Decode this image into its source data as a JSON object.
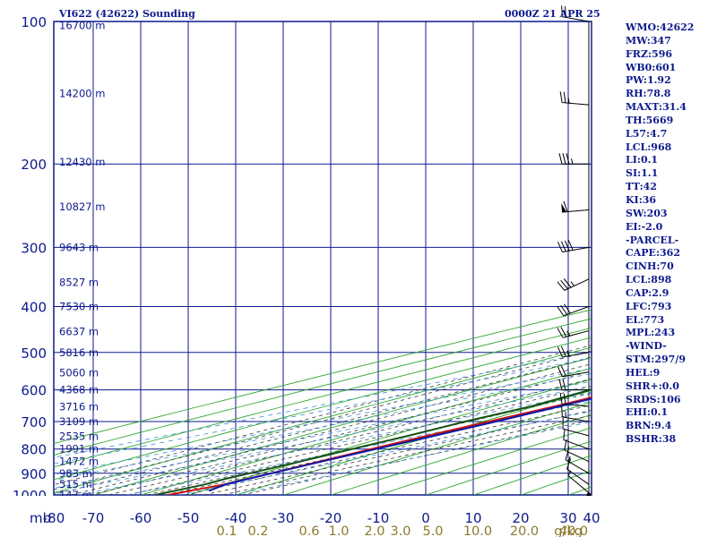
{
  "title": "VI622 (42622) Sounding",
  "datetime": "0000Z 21 APR 25",
  "colors": {
    "frame": "#0d1a8c",
    "temperature": "#cc1111",
    "dewpoint": "#145214",
    "parcel": "#1018a8",
    "dry_adiabat": "#2aa62a",
    "moist_adiabat": "#3a3a3a",
    "mixing_ratio": "#3a8fd8"
  },
  "indices": [
    "WMO:42622",
    "MW:347",
    "FRZ:596",
    "WB0:601",
    "PW:1.92",
    "RH:78.8",
    "MAXT:31.4",
    "TH:5669",
    "L57:4.7",
    "LCL:968",
    "LI:0.1",
    "SI:1.1",
    "TT:42",
    "KI:36",
    "SW:203",
    "EI:-2.0",
    "-PARCEL-",
    "CAPE:362",
    "CINH:70",
    "LCL:898",
    "CAP:2.9",
    "LFC:793",
    "EL:773",
    "MPL:243",
    "-WIND-",
    "STM:297/9",
    "HEL:9",
    "SHR+:0.0",
    "SRDS:106",
    "EHI:0.1",
    "BRN:9.4",
    "BSHR:38"
  ],
  "chart_data": {
    "type": "line",
    "title": "VI622 (42622) Sounding",
    "xlabel": "",
    "ylabel": "mb",
    "x_range": [
      -80,
      0
    ],
    "y_range_mb": [
      1000,
      100
    ],
    "y_scale": "log",
    "grid": true,
    "x_ticks": [
      "-80",
      "-70",
      "-60",
      "-50",
      "-40",
      "-30",
      "-20",
      "-10",
      "0",
      "10",
      "20",
      "30",
      "40"
    ],
    "y_ticks": [
      {
        "p": 100,
        "label": "100"
      },
      {
        "p": 200,
        "label": "200"
      },
      {
        "p": 300,
        "label": "300"
      },
      {
        "p": 400,
        "label": "400"
      },
      {
        "p": 500,
        "label": "500"
      },
      {
        "p": 600,
        "label": "600"
      },
      {
        "p": 700,
        "label": "700"
      },
      {
        "p": 800,
        "label": "800"
      },
      {
        "p": 900,
        "label": "900"
      },
      {
        "p": 1000,
        "label": "1000"
      }
    ],
    "height_labels": [
      {
        "p": 102,
        "label": "16700 m"
      },
      {
        "p": 142,
        "label": "14200 m"
      },
      {
        "p": 198,
        "label": "12430 m"
      },
      {
        "p": 246,
        "label": "10827 m"
      },
      {
        "p": 300,
        "label": "9643 m"
      },
      {
        "p": 356,
        "label": "8527 m"
      },
      {
        "p": 400,
        "label": "7530 m"
      },
      {
        "p": 452,
        "label": "6637 m"
      },
      {
        "p": 500,
        "label": "5816 m"
      },
      {
        "p": 552,
        "label": "5060 m"
      },
      {
        "p": 600,
        "label": "4368 m"
      },
      {
        "p": 652,
        "label": "3716 m"
      },
      {
        "p": 700,
        "label": "3109 m"
      },
      {
        "p": 752,
        "label": "2535 m"
      },
      {
        "p": 800,
        "label": "1991 m"
      },
      {
        "p": 850,
        "label": "1472 m"
      },
      {
        "p": 900,
        "label": "983 m"
      },
      {
        "p": 950,
        "label": "515 m"
      },
      {
        "p": 1000,
        "label": "147 m"
      }
    ],
    "mixing_ratio_labels": [
      "0.1",
      "0.2",
      "0.6",
      "1.0",
      "2.0",
      "3.0",
      "5.0",
      "10.0",
      "20.0",
      "40.0"
    ],
    "mixing_ratio_unit": "g/kg",
    "series": [
      {
        "name": "Temperature",
        "color": "#cc1111",
        "points": [
          [
            1000,
            22.5
          ],
          [
            950,
            22.6
          ],
          [
            925,
            21.3
          ],
          [
            900,
            20
          ],
          [
            850,
            17
          ],
          [
            800,
            14
          ],
          [
            750,
            11
          ],
          [
            700,
            8
          ],
          [
            650,
            5
          ],
          [
            600,
            1
          ],
          [
            570,
            -3
          ],
          [
            550,
            -2
          ],
          [
            545,
            0.6
          ],
          [
            500,
            -5
          ],
          [
            450,
            -10
          ],
          [
            420,
            -14
          ],
          [
            400,
            -16
          ],
          [
            380,
            -17
          ],
          [
            360,
            -17.5
          ],
          [
            330,
            -22
          ],
          [
            300,
            -27
          ],
          [
            250,
            -37
          ],
          [
            200,
            -48
          ],
          [
            150,
            -63
          ],
          [
            120,
            -74
          ],
          [
            103,
            -82
          ]
        ]
      },
      {
        "name": "Dewpoint",
        "color": "#145214",
        "points": [
          [
            1000,
            19.8
          ],
          [
            950,
            18.5
          ],
          [
            925,
            16.6
          ],
          [
            900,
            15.5
          ],
          [
            850,
            13
          ],
          [
            800,
            10
          ],
          [
            750,
            7
          ],
          [
            700,
            3
          ],
          [
            650,
            0
          ],
          [
            600,
            -6
          ],
          [
            560,
            -13
          ],
          [
            520,
            -17
          ],
          [
            480,
            -22
          ],
          [
            440,
            -25
          ],
          [
            400,
            -24
          ],
          [
            395,
            -30
          ],
          [
            390,
            -38
          ],
          [
            382,
            -42
          ],
          [
            376,
            -41
          ],
          [
            360,
            -46
          ],
          [
            330,
            -56
          ],
          [
            300,
            -64
          ],
          [
            250,
            -76
          ],
          [
            220,
            -82
          ]
        ]
      },
      {
        "name": "Parcel",
        "color": "#1018a8",
        "points": [
          [
            980,
            26.5
          ],
          [
            950,
            22.8
          ],
          [
            898,
            20
          ],
          [
            850,
            17.5
          ],
          [
            800,
            15
          ],
          [
            750,
            12.5
          ],
          [
            700,
            9.5
          ],
          [
            650,
            6
          ],
          [
            600,
            2
          ],
          [
            550,
            -2.5
          ],
          [
            500,
            -7.5
          ],
          [
            450,
            -13
          ],
          [
            400,
            -19.5
          ],
          [
            350,
            -27
          ],
          [
            300,
            -36
          ],
          [
            250,
            -47
          ],
          [
            200,
            -60
          ],
          [
            150,
            -74
          ],
          [
            130,
            -82
          ]
        ]
      }
    ],
    "wind_barbs": [
      {
        "p": 990,
        "dir": 310,
        "spd": 5
      },
      {
        "p": 950,
        "dir": 305,
        "spd": 10
      },
      {
        "p": 900,
        "dir": 300,
        "spd": 15
      },
      {
        "p": 850,
        "dir": 295,
        "spd": 15
      },
      {
        "p": 800,
        "dir": 290,
        "spd": 10
      },
      {
        "p": 750,
        "dir": 285,
        "spd": 10
      },
      {
        "p": 700,
        "dir": 280,
        "spd": 15
      },
      {
        "p": 650,
        "dir": 275,
        "spd": 20
      },
      {
        "p": 600,
        "dir": 270,
        "spd": 20
      },
      {
        "p": 550,
        "dir": 260,
        "spd": 20
      },
      {
        "p": 500,
        "dir": 260,
        "spd": 25
      },
      {
        "p": 450,
        "dir": 255,
        "spd": 25
      },
      {
        "p": 400,
        "dir": 250,
        "spd": 30
      },
      {
        "p": 350,
        "dir": 245,
        "spd": 35
      },
      {
        "p": 300,
        "dir": 260,
        "spd": 40
      },
      {
        "p": 250,
        "dir": 265,
        "spd": 60
      },
      {
        "p": 200,
        "dir": 270,
        "spd": 35
      },
      {
        "p": 150,
        "dir": 275,
        "spd": 25
      },
      {
        "p": 100,
        "dir": 280,
        "spd": 20
      }
    ]
  }
}
